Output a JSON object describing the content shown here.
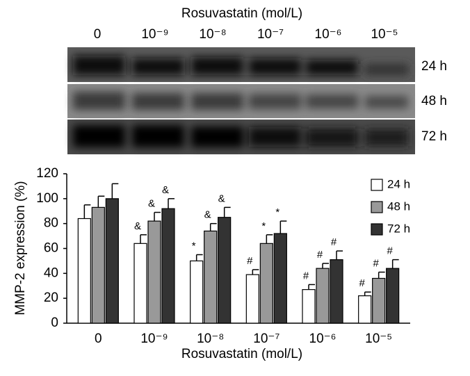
{
  "chart_data": {
    "type": "bar",
    "x_label": "Rosuvastatin (mol/L)",
    "y_label": "MMP-2 expression (%)",
    "categories": [
      "0",
      "10⁻⁹",
      "10⁻⁸",
      "10⁻⁷",
      "10⁻⁶",
      "10⁻⁵"
    ],
    "series": [
      {
        "name": "24 h",
        "color": "#ffffff",
        "values": [
          84,
          64,
          50,
          39,
          27,
          22
        ],
        "errors": [
          11,
          7,
          5,
          4,
          4,
          3
        ],
        "annotations": [
          null,
          "&",
          "*",
          "#",
          "#",
          "#"
        ]
      },
      {
        "name": "48 h",
        "color": "#999999",
        "values": [
          93,
          82,
          74,
          64,
          44,
          36
        ],
        "errors": [
          9,
          7,
          6,
          7,
          4,
          5
        ],
        "annotations": [
          null,
          "&",
          "&",
          "*",
          "#",
          "#"
        ]
      },
      {
        "name": "72 h",
        "color": "#333333",
        "values": [
          100,
          92,
          85,
          72,
          51,
          44
        ],
        "errors": [
          12,
          8,
          8,
          10,
          7,
          7
        ],
        "annotations": [
          null,
          "&",
          "&",
          "*",
          "#",
          "#"
        ]
      }
    ],
    "ylim": [
      0,
      120
    ],
    "yticks": [
      0,
      20,
      40,
      60,
      80,
      100,
      120
    ],
    "legend": "top-right"
  }
}
